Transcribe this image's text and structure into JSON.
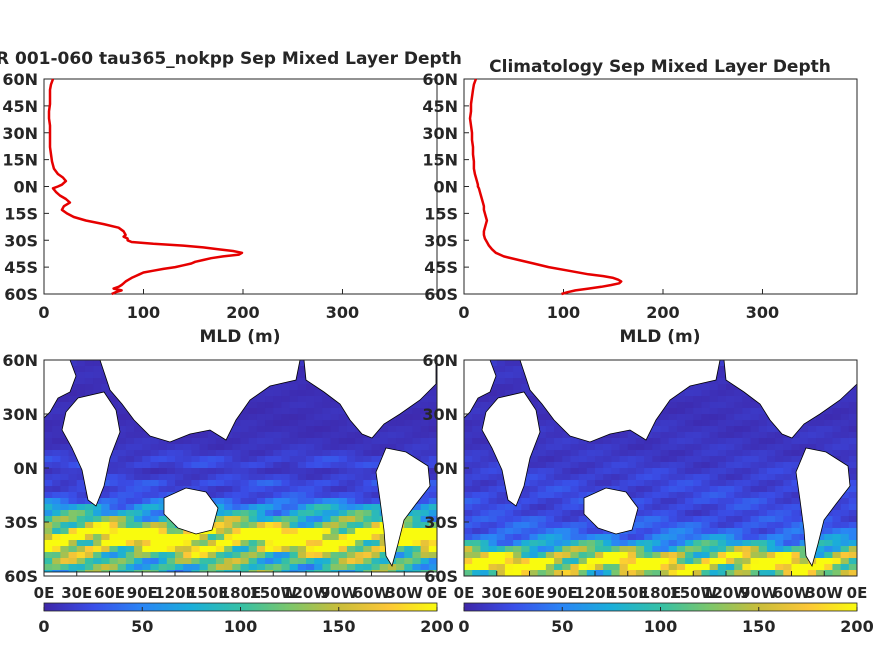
{
  "chart_data": [
    {
      "type": "line",
      "title": "R 001-060 tau365_nokpp Sep Mixed Layer Depth",
      "xlabel": "MLD (m)",
      "ylabel": "",
      "xlim": [
        0,
        395
      ],
      "ylim": [
        -60,
        60
      ],
      "xticks": [
        0,
        100,
        200,
        300
      ],
      "yticks": [
        60,
        45,
        30,
        15,
        0,
        -15,
        -30,
        -45,
        -60
      ],
      "ytick_labels": [
        "60N",
        "45N",
        "30N",
        "15N",
        "0N",
        "15S",
        "30S",
        "45S",
        "60S"
      ],
      "grid": false,
      "color": "#e60000",
      "series": [
        {
          "lat": [
            60,
            57,
            54,
            50,
            46,
            42,
            38,
            34,
            30,
            26,
            22,
            18,
            14,
            10,
            7,
            5,
            3,
            1,
            0,
            -1,
            -3,
            -5,
            -7,
            -9,
            -11,
            -13,
            -15,
            -17,
            -19,
            -21,
            -23,
            -25,
            -27,
            -28,
            -29,
            -30,
            -31,
            -32,
            -33,
            -34,
            -35,
            -36,
            -37,
            -38,
            -39,
            -40,
            -41,
            -42,
            -43,
            -44,
            -45,
            -46,
            -47,
            -48,
            -49,
            -50,
            -51,
            -52,
            -53,
            -54,
            -55,
            -56,
            -57,
            -58,
            -59,
            -60
          ],
          "mld": [
            9,
            7,
            6,
            6,
            6,
            5,
            5,
            6,
            6,
            6,
            6,
            7,
            8,
            10,
            14,
            19,
            22,
            18,
            14,
            9,
            12,
            16,
            22,
            26,
            20,
            18,
            23,
            30,
            42,
            60,
            75,
            80,
            82,
            80,
            84,
            84,
            88,
            110,
            140,
            160,
            175,
            190,
            199,
            196,
            180,
            168,
            160,
            152,
            148,
            140,
            132,
            120,
            110,
            100,
            96,
            92,
            88,
            85,
            82,
            80,
            78,
            75,
            70,
            78,
            72,
            68
          ]
        }
      ]
    },
    {
      "type": "line",
      "title": "Climatology Sep Mixed Layer Depth",
      "xlabel": "MLD (m)",
      "ylabel": "",
      "xlim": [
        0,
        395
      ],
      "ylim": [
        -60,
        60
      ],
      "xticks": [
        0,
        100,
        200,
        300
      ],
      "yticks": [
        60,
        45,
        30,
        15,
        0,
        -15,
        -30,
        -45,
        -60
      ],
      "ytick_labels": [
        "60N",
        "45N",
        "30N",
        "15N",
        "0N",
        "15S",
        "30S",
        "45S",
        "60S"
      ],
      "grid": false,
      "color": "#e60000",
      "series": [
        {
          "lat": [
            60,
            57,
            54,
            50,
            46,
            42,
            38,
            34,
            30,
            26,
            22,
            18,
            14,
            10,
            7,
            5,
            3,
            1,
            0,
            -1,
            -3,
            -5,
            -7,
            -9,
            -11,
            -13,
            -15,
            -17,
            -19,
            -21,
            -23,
            -25,
            -27,
            -29,
            -31,
            -33,
            -35,
            -37,
            -39,
            -41,
            -43,
            -45,
            -47,
            -49,
            -50,
            -51,
            -52,
            -53,
            -54,
            -55,
            -56,
            -57,
            -58,
            -59,
            -60
          ],
          "mld": [
            12,
            10,
            9,
            8,
            7,
            7,
            6,
            7,
            8,
            8,
            9,
            9,
            10,
            10,
            11,
            12,
            13,
            14,
            14,
            15,
            16,
            17,
            18,
            19,
            20,
            20,
            21,
            22,
            23,
            22,
            21,
            20,
            20,
            21,
            23,
            25,
            28,
            32,
            40,
            55,
            70,
            85,
            105,
            125,
            140,
            150,
            155,
            158,
            156,
            148,
            138,
            125,
            112,
            104,
            98
          ]
        }
      ]
    },
    {
      "type": "heatmap",
      "title": "",
      "xtick_labels": [
        "0E",
        "30E",
        "60E",
        "90E",
        "120E",
        "150E",
        "180E",
        "150W",
        "120W",
        "90W",
        "60W",
        "30W",
        "0E"
      ],
      "ytick_labels": [
        "60N",
        "30N",
        "0N",
        "30S",
        "60S"
      ],
      "colorbar": {
        "min": 0,
        "max": 200,
        "ticks": [
          0,
          50,
          100,
          150,
          200
        ]
      },
      "colormap": [
        "#3e26a8",
        "#3a4ee8",
        "#2a85f5",
        "#1aaed9",
        "#35c0a6",
        "#7cc66b",
        "#c9bd3a",
        "#fcc737",
        "#f9fb0e"
      ],
      "zonal_profile_source": 0
    },
    {
      "type": "heatmap",
      "title": "",
      "xtick_labels": [
        "0E",
        "30E",
        "60E",
        "90E",
        "120E",
        "150E",
        "180E",
        "150W",
        "120W",
        "90W",
        "60W",
        "30W",
        "0E"
      ],
      "ytick_labels": [
        "60N",
        "30N",
        "0N",
        "30S",
        "60S"
      ],
      "colorbar": {
        "min": 0,
        "max": 200,
        "ticks": [
          0,
          50,
          100,
          150,
          200
        ]
      },
      "colormap": [
        "#3e26a8",
        "#3a4ee8",
        "#2a85f5",
        "#1aaed9",
        "#35c0a6",
        "#7cc66b",
        "#c9bd3a",
        "#fcc737",
        "#f9fb0e"
      ],
      "zonal_profile_source": 1
    }
  ]
}
